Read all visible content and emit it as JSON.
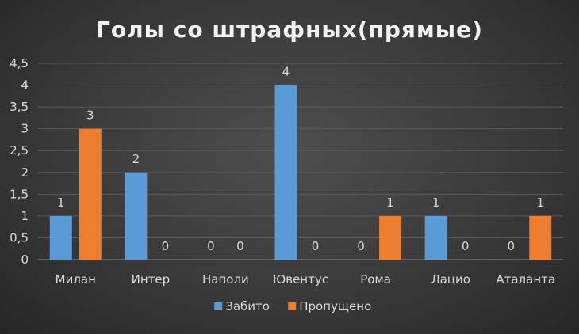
{
  "chart_data": {
    "type": "bar",
    "title": "Голы со штрафных(прямые)",
    "xlabel": "",
    "ylabel": "",
    "ylim": [
      0,
      4.5
    ],
    "yticks": [
      "0",
      "0,5",
      "1",
      "1,5",
      "2",
      "2,5",
      "3",
      "3,5",
      "4",
      "4,5"
    ],
    "ytick_values": [
      0,
      0.5,
      1,
      1.5,
      2,
      2.5,
      3,
      3.5,
      4,
      4.5
    ],
    "categories": [
      "Милан",
      "Интер",
      "Наполи",
      "Ювентус",
      "Рома",
      "Лацио",
      "Аталанта"
    ],
    "series": [
      {
        "name": "Забито",
        "color": "#5b9bd5",
        "values": [
          1,
          2,
          0,
          4,
          0,
          1,
          0
        ]
      },
      {
        "name": "Пропущено",
        "color": "#ed7d31",
        "values": [
          3,
          0,
          0,
          0,
          1,
          0,
          1
        ]
      }
    ],
    "data_labels": true,
    "grid": true,
    "legend_position": "bottom"
  }
}
